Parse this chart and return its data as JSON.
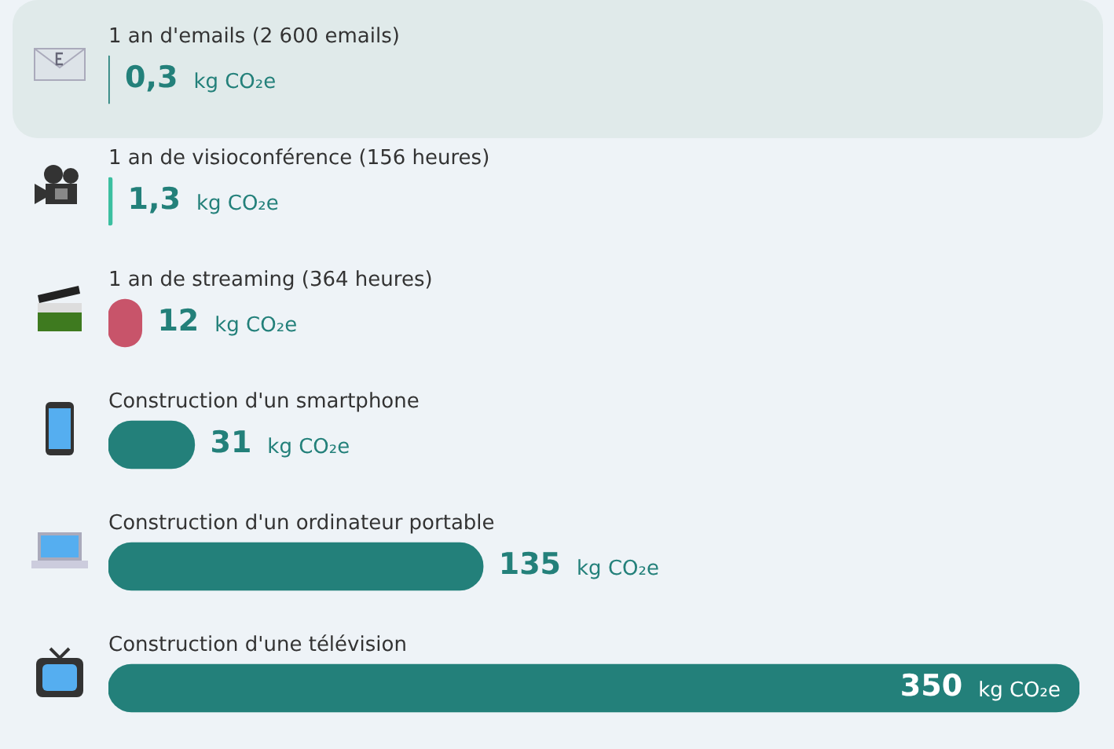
{
  "chart_data": {
    "type": "bar",
    "orientation": "horizontal",
    "categories": [
      "1 an d'emails (2 600 emails)",
      "1 an de visioconférence (156 heures)",
      "1 an de streaming (364 heures)",
      "Construction d'un smartphone",
      "Construction d'un ordinateur portable",
      "Construction d'une télévision"
    ],
    "values": [
      0.3,
      1.3,
      12,
      31,
      135,
      350
    ],
    "colors": [
      "#23807a",
      "#3bbfa0",
      "#c8546a",
      "#23807a",
      "#23807a",
      "#23807a"
    ],
    "value_labels": [
      "0,3 kg CO₂e",
      "1,3 kg CO₂e",
      "12 kg CO₂e",
      "31 kg CO₂e",
      "135 kg CO₂e",
      "350 kg CO₂e"
    ],
    "xlim": [
      0,
      350
    ],
    "tick_labels": false,
    "legend": false
  }
}
